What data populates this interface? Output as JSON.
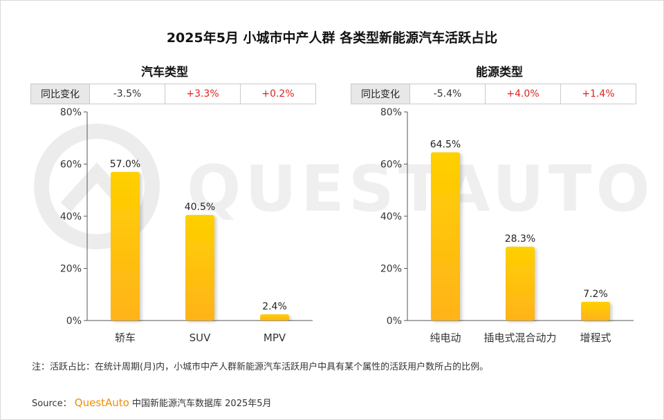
{
  "title": "2025年5月 小城市中产人群 各类型新能源汽车活跃占比",
  "watermark": "QUESTAUTO",
  "footnote": "注：活跃占比：在统计周期(月)内，小城市中产人群新能源汽车活跃用户中具有某个属性的活跃用户数所占的比例。",
  "source": {
    "label": "Source：",
    "brand": "QuestAuto",
    "text": "中国新能源汽车数据库 2025年5月"
  },
  "colors": {
    "bar_top": "#ffd000",
    "bar_bottom": "#ffb31a",
    "positive": "#e02020",
    "negative": "#333333"
  },
  "chart_data": [
    {
      "type": "bar",
      "title": "汽车类型",
      "categories": [
        "轿车",
        "SUV",
        "MPV"
      ],
      "values": [
        57.0,
        40.5,
        2.4
      ],
      "value_labels": [
        "57.0%",
        "40.5%",
        "2.4%"
      ],
      "yoy_label": "同比变化",
      "yoy": [
        "-3.5%",
        "+3.3%",
        "+0.2%"
      ],
      "ylim": [
        0,
        80
      ],
      "yticks": [
        "0%",
        "20%",
        "40%",
        "60%",
        "80%"
      ],
      "grid": false
    },
    {
      "type": "bar",
      "title": "能源类型",
      "categories": [
        "纯电动",
        "插电式混合动力",
        "增程式"
      ],
      "values": [
        64.5,
        28.3,
        7.2
      ],
      "value_labels": [
        "64.5%",
        "28.3%",
        "7.2%"
      ],
      "yoy_label": "同比变化",
      "yoy": [
        "-5.4%",
        "+4.0%",
        "+1.4%"
      ],
      "ylim": [
        0,
        80
      ],
      "yticks": [
        "0%",
        "20%",
        "40%",
        "60%",
        "80%"
      ],
      "grid": false
    }
  ]
}
